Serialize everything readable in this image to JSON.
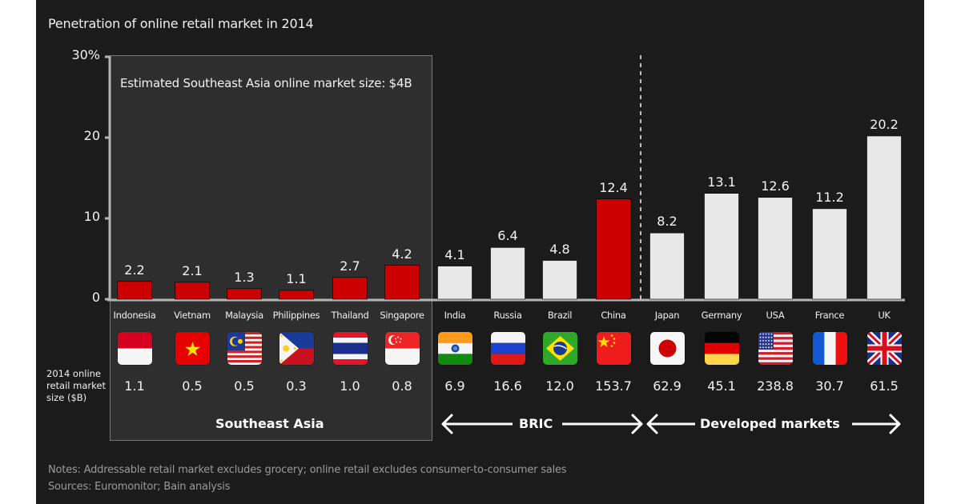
{
  "chart_data": {
    "type": "bar",
    "title": "Penetration of online retail market in 2014",
    "ylabel": "",
    "xlabel": "",
    "ylim": [
      0,
      30
    ],
    "yticks": [
      {
        "value": 0,
        "label": "0"
      },
      {
        "value": 10,
        "label": "10"
      },
      {
        "value": 20,
        "label": "20"
      },
      {
        "value": 30,
        "label": "30%"
      }
    ],
    "grid": false,
    "categories": [
      "Indonesia",
      "Vietnam",
      "Malaysia",
      "Philippines",
      "Thailand",
      "Singapore",
      "India",
      "Russia",
      "Brazil",
      "China",
      "Japan",
      "Germany",
      "USA",
      "France",
      "UK"
    ],
    "values": [
      2.2,
      2.1,
      1.3,
      1.1,
      2.7,
      4.2,
      4.1,
      6.4,
      4.8,
      12.4,
      8.2,
      13.1,
      12.6,
      11.2,
      20.2
    ],
    "value_labels": [
      "2.2",
      "2.1",
      "1.3",
      "1.1",
      "2.7",
      "4.2",
      "4.1",
      "6.4",
      "4.8",
      "12.4",
      "8.2",
      "13.1",
      "12.6",
      "11.2",
      "20.2"
    ],
    "bar_colors": [
      "#cc0000",
      "#cc0000",
      "#cc0000",
      "#cc0000",
      "#cc0000",
      "#cc0000",
      "#e8e8e8",
      "#e8e8e8",
      "#e8e8e8",
      "#cc0000",
      "#e8e8e8",
      "#e8e8e8",
      "#e8e8e8",
      "#e8e8e8",
      "#e8e8e8"
    ],
    "secondary_row": {
      "label": "2014 online retail market size ($B)",
      "label_lines": [
        "2014 online",
        "retail market",
        "size ($B)"
      ],
      "values": [
        1.1,
        0.5,
        0.5,
        0.3,
        1.0,
        0.8,
        6.9,
        16.6,
        12.0,
        153.7,
        62.9,
        45.1,
        238.8,
        30.7,
        61.5
      ],
      "value_labels": [
        "1.1",
        "0.5",
        "0.5",
        "0.3",
        "1.0",
        "0.8",
        "6.9",
        "16.6",
        "12.0",
        "153.7",
        "62.9",
        "45.1",
        "238.8",
        "30.7",
        "61.5"
      ]
    },
    "groups": [
      {
        "name": "Southeast Asia",
        "categories": [
          "Indonesia",
          "Vietnam",
          "Malaysia",
          "Philippines",
          "Thailand",
          "Singapore"
        ],
        "highlighted_box": true
      },
      {
        "name": "BRIC",
        "categories": [
          "India",
          "Russia",
          "Brazil",
          "China"
        ],
        "arrows": true
      },
      {
        "name": "Developed markets",
        "categories": [
          "Japan",
          "Germany",
          "USA",
          "France",
          "UK"
        ],
        "arrows": true
      }
    ],
    "annotations": [
      "Estimated Southeast Asia online market size: $4B"
    ],
    "legend": "none"
  },
  "flags": [
    "flag-indonesia",
    "flag-vietnam",
    "flag-malaysia",
    "flag-philippines",
    "flag-thailand",
    "flag-singapore",
    "flag-india",
    "flag-russia",
    "flag-brazil",
    "flag-china",
    "flag-japan",
    "flag-germany",
    "flag-usa",
    "flag-france",
    "flag-uk"
  ],
  "colors": {
    "highlight_red": "#cc0000",
    "bar_light": "#e8e8e8",
    "background": "#1b1b1b",
    "sea_box": "#2e2e2e"
  },
  "footer": {
    "notes": "Notes: Addressable retail market excludes grocery; online retail excludes consumer-to-consumer sales",
    "sources": "Sources: Euromonitor; Bain analysis"
  }
}
